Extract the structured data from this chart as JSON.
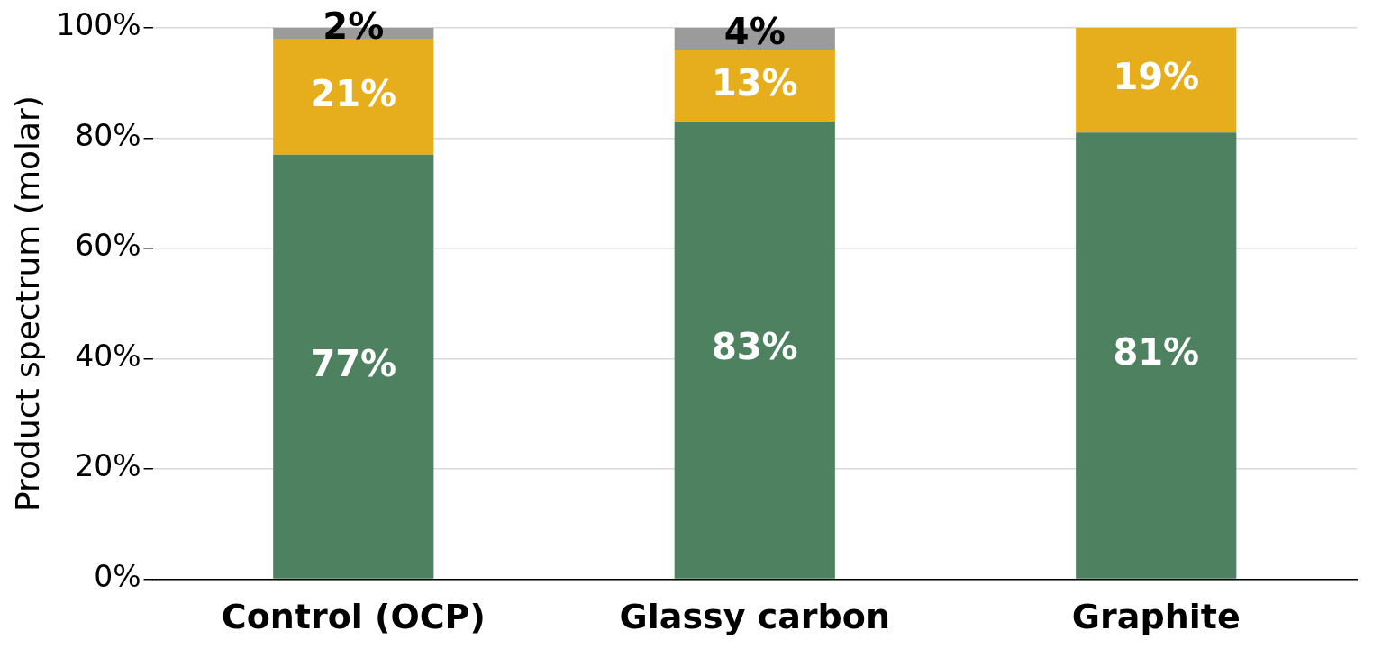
{
  "chart_data": {
    "type": "bar",
    "stacked": true,
    "ylabel": "Product spectrum (molar)",
    "categories": [
      "Control (OCP)",
      "Glassy carbon",
      "Graphite"
    ],
    "series": [
      {
        "color": "#4e8160",
        "values": [
          77,
          83,
          81
        ],
        "value_labels": [
          "77%",
          "83%",
          "81%"
        ]
      },
      {
        "color": "#e6ad1c",
        "values": [
          21,
          13,
          19
        ],
        "value_labels": [
          "21%",
          "13%",
          "19%"
        ]
      },
      {
        "color": "#9b9b9b",
        "values": [
          2,
          4,
          null
        ],
        "value_labels": [
          "2%",
          "4%",
          null
        ]
      }
    ],
    "ylim": [
      0,
      100
    ],
    "yticks": [
      {
        "value": 0,
        "label": "0%"
      },
      {
        "value": 20,
        "label": "20%"
      },
      {
        "value": 40,
        "label": "40%"
      },
      {
        "value": 60,
        "label": "60%"
      },
      {
        "value": 80,
        "label": "80%"
      },
      {
        "value": 100,
        "label": "100%"
      }
    ],
    "grid": "y",
    "legend": false
  }
}
